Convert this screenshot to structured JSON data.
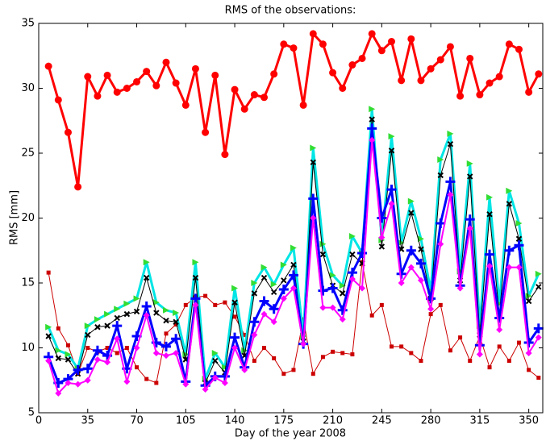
{
  "chart_data": {
    "type": "line",
    "title": "RMS of the observations:",
    "x_label": "Day of the year 2008",
    "y_label": "RMS [mm]",
    "xlim": [
      0,
      360
    ],
    "ylim": [
      5,
      35
    ],
    "xticks": [
      0,
      35,
      70,
      105,
      140,
      175,
      210,
      245,
      280,
      315,
      350
    ],
    "yticks": [
      5,
      10,
      15,
      20,
      25,
      30,
      35
    ],
    "grid": false,
    "x": [
      7,
      14,
      21,
      28,
      35,
      42,
      49,
      56,
      63,
      70,
      77,
      84,
      91,
      98,
      105,
      112,
      119,
      126,
      133,
      140,
      147,
      154,
      161,
      168,
      175,
      182,
      189,
      196,
      203,
      210,
      217,
      224,
      231,
      238,
      245,
      252,
      259,
      266,
      273,
      280,
      287,
      294,
      301,
      308,
      315,
      322,
      329,
      336,
      343,
      350,
      357
    ],
    "series": [
      {
        "color": "#cc0000",
        "marker": "square",
        "linewidth": 1,
        "values": [
          15.8,
          11.5,
          10.2,
          8.0,
          10.0,
          9.7,
          10.0,
          9.6,
          10.0,
          8.5,
          7.6,
          7.3,
          11.1,
          11.8,
          13.3,
          13.9,
          14.0,
          13.3,
          13.5,
          12.4,
          11.0,
          9.0,
          10.0,
          9.2,
          8.0,
          8.3,
          12.2,
          8.0,
          9.3,
          9.7,
          9.6,
          9.5,
          16.6,
          12.5,
          13.3,
          10.1,
          10.1,
          9.6,
          9.0,
          12.6,
          13.3,
          9.8,
          10.8,
          9.0,
          10.9,
          8.5,
          10.1,
          9.0,
          10.4,
          8.3,
          7.7
        ]
      },
      {
        "color": "#00e5e5",
        "marker": "triangle",
        "linewidth": 3,
        "values": [
          11.6,
          9.8,
          9.5,
          8.4,
          11.7,
          12.2,
          12.6,
          13.0,
          13.4,
          13.8,
          16.6,
          13.5,
          12.9,
          12.7,
          9.5,
          16.6,
          7.6,
          9.6,
          8.5,
          14.6,
          9.8,
          15.0,
          16.2,
          14.9,
          16.4,
          17.7,
          10.9,
          25.4,
          18.0,
          15.6,
          14.8,
          18.6,
          17.3,
          28.4,
          18.3,
          26.3,
          18.1,
          21.3,
          18.4,
          14.4,
          24.5,
          26.5,
          15.9,
          24.2,
          11.7,
          21.6,
          13.4,
          22.1,
          19.6,
          14.0,
          15.7
        ]
      },
      {
        "color": "#000000",
        "marker": "x",
        "linewidth": 1,
        "values": [
          10.9,
          9.2,
          9.1,
          8.0,
          11.0,
          11.6,
          11.7,
          12.3,
          12.6,
          12.8,
          15.4,
          12.7,
          12.1,
          12.0,
          9.1,
          15.4,
          7.3,
          9.0,
          8.1,
          13.5,
          9.4,
          14.2,
          15.4,
          14.3,
          15.2,
          16.4,
          10.5,
          24.3,
          17.2,
          14.8,
          14.2,
          17.2,
          16.5,
          27.6,
          17.8,
          25.2,
          17.6,
          20.4,
          17.6,
          13.8,
          23.3,
          25.7,
          15.2,
          23.2,
          11.0,
          20.3,
          12.5,
          21.1,
          18.4,
          13.6,
          14.7
        ]
      },
      {
        "color": "#0000ff",
        "marker": "plus",
        "linewidth": 3,
        "values": [
          9.3,
          7.3,
          7.6,
          8.3,
          8.4,
          9.8,
          9.4,
          11.7,
          8.4,
          10.9,
          13.2,
          10.4,
          10.1,
          10.7,
          7.4,
          13.8,
          7.1,
          7.8,
          7.8,
          10.8,
          8.5,
          12.0,
          13.6,
          13.0,
          14.5,
          15.6,
          10.3,
          21.5,
          14.4,
          14.6,
          12.9,
          15.8,
          17.3,
          26.9,
          20.0,
          22.2,
          15.7,
          17.5,
          16.5,
          13.8,
          19.6,
          22.8,
          14.8,
          19.9,
          10.2,
          17.2,
          12.3,
          17.5,
          17.9,
          10.4,
          11.5
        ]
      },
      {
        "color": "#ff00ff",
        "marker": "diamond",
        "linewidth": 2,
        "values": [
          9.0,
          6.5,
          7.3,
          7.2,
          7.5,
          9.1,
          8.9,
          10.7,
          7.4,
          10.0,
          12.5,
          9.6,
          9.4,
          9.6,
          7.2,
          13.3,
          6.8,
          7.7,
          7.3,
          10.0,
          8.3,
          11.0,
          12.6,
          12.0,
          13.8,
          14.6,
          10.3,
          20.0,
          13.1,
          13.1,
          12.2,
          15.3,
          14.6,
          26.0,
          18.5,
          21.1,
          15.0,
          16.2,
          15.2,
          13.0,
          18.0,
          21.8,
          14.6,
          19.2,
          9.5,
          16.3,
          11.4,
          16.2,
          16.2,
          9.6,
          10.8
        ]
      },
      {
        "color": "#ff0000",
        "marker": "star",
        "linewidth": 3,
        "values": [
          31.7,
          29.1,
          26.6,
          22.4,
          30.9,
          29.4,
          31.0,
          29.7,
          30.0,
          30.5,
          31.3,
          30.2,
          32.0,
          30.4,
          28.7,
          31.5,
          26.6,
          31.0,
          24.9,
          29.9,
          28.4,
          29.5,
          29.3,
          31.1,
          33.4,
          33.1,
          28.7,
          34.2,
          33.4,
          31.2,
          30.0,
          31.8,
          32.3,
          34.2,
          32.9,
          33.6,
          30.6,
          33.8,
          30.6,
          31.5,
          32.2,
          33.2,
          29.4,
          32.3,
          29.5,
          30.4,
          30.9,
          33.4,
          33.0,
          29.7,
          31.1
        ]
      }
    ]
  }
}
